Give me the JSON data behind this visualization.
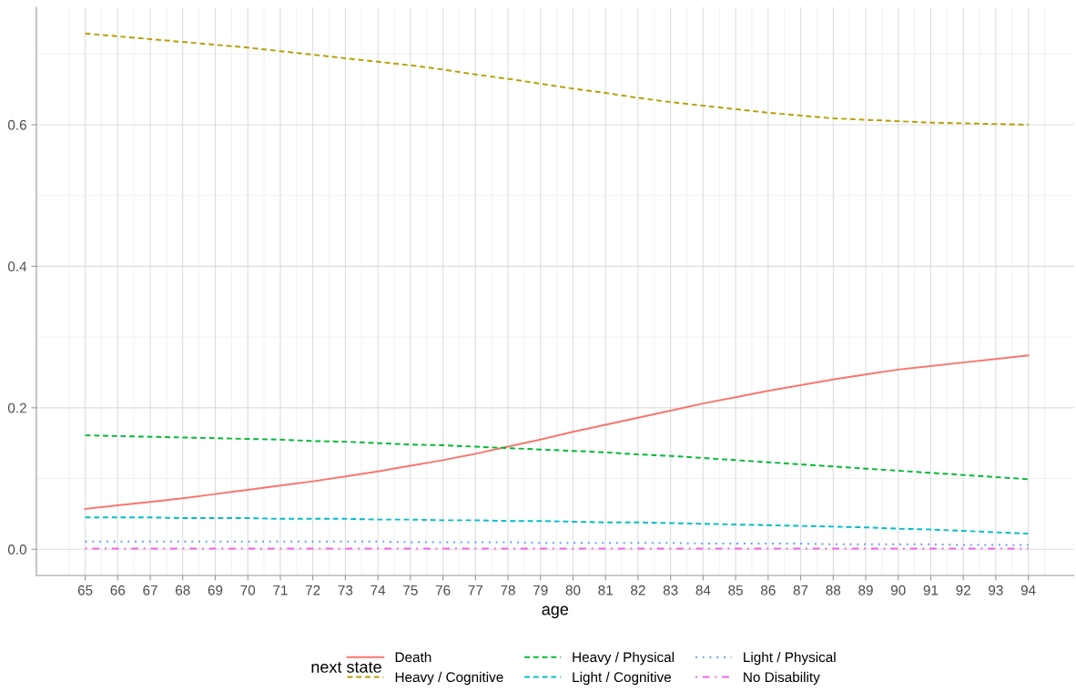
{
  "chart_data": {
    "type": "line",
    "xlabel": "age",
    "legend_title": "next state",
    "legend": "bottom",
    "grid": true,
    "x": [
      65,
      66,
      67,
      68,
      69,
      70,
      71,
      72,
      73,
      74,
      75,
      76,
      77,
      78,
      79,
      80,
      81,
      82,
      83,
      84,
      85,
      86,
      87,
      88,
      89,
      90,
      91,
      92,
      93,
      94
    ],
    "xlim": [
      63.5,
      95.4
    ],
    "xticks": [
      65,
      66,
      67,
      68,
      69,
      70,
      71,
      72,
      73,
      74,
      75,
      76,
      77,
      78,
      79,
      80,
      81,
      82,
      83,
      84,
      85,
      86,
      87,
      88,
      89,
      90,
      91,
      92,
      93,
      94
    ],
    "ylim": [
      -0.037,
      0.766
    ],
    "yticks": [
      {
        "value": 0,
        "label": "0.0"
      },
      {
        "value": 0.2,
        "label": "0.2"
      },
      {
        "value": 0.4,
        "label": "0.4"
      },
      {
        "value": 0.6,
        "label": "0.6"
      }
    ],
    "series": [
      {
        "name": "Death",
        "color": "#f8766d",
        "line_style": "solid",
        "values": [
          0.057,
          0.062,
          0.067,
          0.072,
          0.078,
          0.084,
          0.09,
          0.096,
          0.103,
          0.11,
          0.118,
          0.126,
          0.135,
          0.145,
          0.155,
          0.166,
          0.176,
          0.186,
          0.196,
          0.206,
          0.215,
          0.224,
          0.232,
          0.24,
          0.247,
          0.254,
          0.259,
          0.264,
          0.269,
          0.274
        ]
      },
      {
        "name": "Heavy / Cognitive",
        "color": "#b79f00",
        "line_style": "dashed",
        "values": [
          0.729,
          0.725,
          0.721,
          0.717,
          0.713,
          0.709,
          0.704,
          0.699,
          0.694,
          0.689,
          0.684,
          0.678,
          0.671,
          0.665,
          0.658,
          0.651,
          0.645,
          0.638,
          0.632,
          0.627,
          0.622,
          0.617,
          0.613,
          0.609,
          0.607,
          0.605,
          0.603,
          0.602,
          0.601,
          0.6
        ]
      },
      {
        "name": "Heavy / Physical",
        "color": "#00ba38",
        "line_style": "dashed",
        "values": [
          0.161,
          0.16,
          0.159,
          0.158,
          0.157,
          0.156,
          0.155,
          0.153,
          0.152,
          0.15,
          0.148,
          0.147,
          0.145,
          0.143,
          0.141,
          0.139,
          0.137,
          0.134,
          0.132,
          0.129,
          0.126,
          0.123,
          0.12,
          0.117,
          0.114,
          0.111,
          0.108,
          0.105,
          0.102,
          0.099
        ]
      },
      {
        "name": "Light / Cognitive",
        "color": "#00bfc4",
        "line_style": "dashed",
        "values": [
          0.045,
          0.045,
          0.045,
          0.044,
          0.044,
          0.044,
          0.043,
          0.043,
          0.043,
          0.042,
          0.042,
          0.041,
          0.041,
          0.04,
          0.04,
          0.039,
          0.038,
          0.038,
          0.037,
          0.036,
          0.035,
          0.034,
          0.033,
          0.032,
          0.031,
          0.029,
          0.028,
          0.026,
          0.024,
          0.022
        ]
      },
      {
        "name": "Light / Physical",
        "color": "#619cff",
        "line_style": "dotted",
        "values": [
          0.011,
          0.011,
          0.011,
          0.011,
          0.011,
          0.011,
          0.011,
          0.011,
          0.011,
          0.011,
          0.01,
          0.01,
          0.01,
          0.01,
          0.009,
          0.009,
          0.009,
          0.009,
          0.009,
          0.008,
          0.008,
          0.008,
          0.008,
          0.007,
          0.007,
          0.007,
          0.007,
          0.006,
          0.006,
          0.006
        ]
      },
      {
        "name": "No Disability",
        "color": "#f564e3",
        "line_style": "dashdot",
        "values": [
          0.001,
          0.001,
          0.001,
          0.001,
          0.001,
          0.001,
          0.001,
          0.001,
          0.001,
          0.001,
          0.001,
          0.001,
          0.001,
          0.001,
          0.001,
          0.001,
          0.001,
          0.001,
          0.001,
          0.001,
          0.001,
          0.001,
          0.001,
          0.001,
          0.001,
          0.001,
          0.001,
          0.001,
          0.001,
          0.001
        ]
      }
    ]
  }
}
